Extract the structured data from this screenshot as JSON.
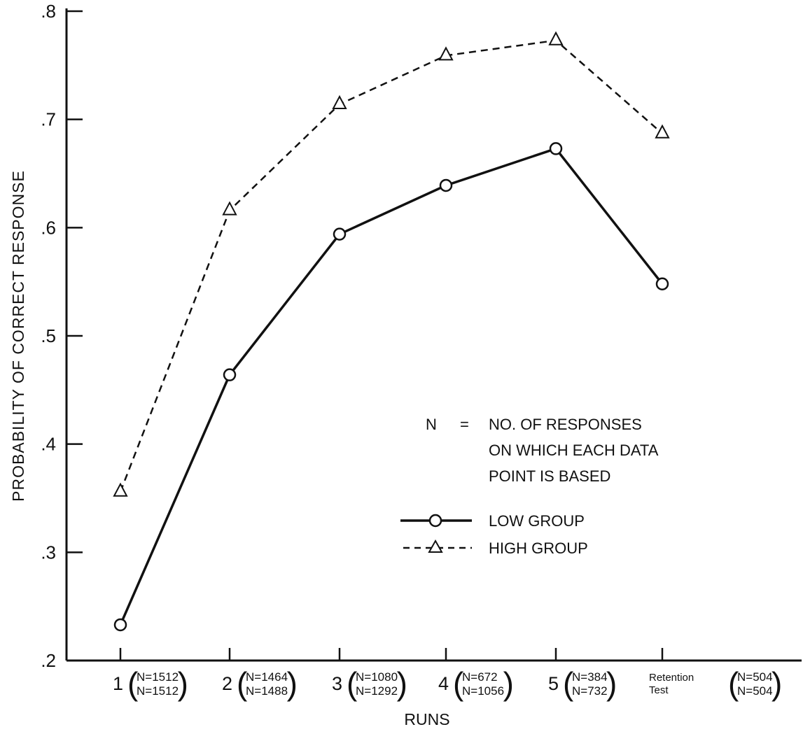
{
  "chart_data": {
    "type": "line",
    "ylabel": "PROBABILITY OF CORRECT RESPONSE",
    "xlabel": "RUNS",
    "ylim": [
      0.2,
      0.8
    ],
    "yticks": [
      ".2",
      ".3",
      ".4",
      ".5",
      ".6",
      ".7",
      ".8"
    ],
    "ytick_values": [
      0.2,
      0.3,
      0.4,
      0.5,
      0.6,
      0.7,
      0.8
    ],
    "grid": false,
    "categories": [
      {
        "label": "1",
        "n_low": "N=1512",
        "n_high": "N=1512"
      },
      {
        "label": "2",
        "n_low": "N=1464",
        "n_high": "N=1488"
      },
      {
        "label": "3",
        "n_low": "N=1080",
        "n_high": "N=1292"
      },
      {
        "label": "4",
        "n_low": "N=672",
        "n_high": "N=1056"
      },
      {
        "label": "5",
        "n_low": "N=384",
        "n_high": "N=732"
      },
      {
        "label": "Retention Test",
        "label_lines": [
          "Retention",
          "Test"
        ],
        "n_low": "N=504",
        "n_high": "N=504"
      }
    ],
    "series": [
      {
        "name": "LOW GROUP",
        "marker": "circle",
        "line": "solid",
        "values": [
          0.233,
          0.464,
          0.594,
          0.639,
          0.673,
          0.548
        ]
      },
      {
        "name": "HIGH GROUP",
        "marker": "triangle",
        "line": "dashed",
        "values": [
          0.356,
          0.616,
          0.714,
          0.759,
          0.773,
          0.687
        ]
      }
    ],
    "legend": {
      "placement": "center-right",
      "note_key": "N",
      "note_eq": "=",
      "note_lines": [
        "NO. OF RESPONSES",
        "ON WHICH EACH DATA",
        "POINT IS BASED"
      ]
    }
  }
}
